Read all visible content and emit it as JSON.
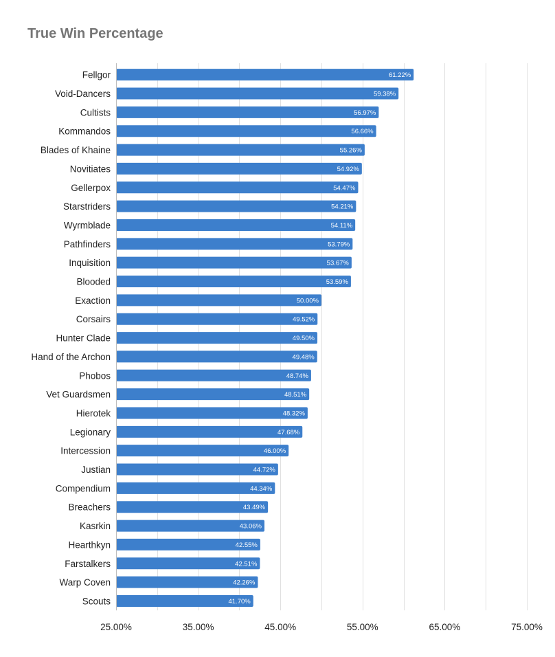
{
  "chart_data": {
    "type": "bar",
    "orientation": "horizontal",
    "title": "True Win Percentage",
    "xlabel": "",
    "ylabel": "",
    "xlim": [
      25,
      75
    ],
    "grid": true,
    "legend": "none",
    "bar_color": "#3d7fcc",
    "categories": [
      "Fellgor",
      "Void-Dancers",
      "Cultists",
      "Kommandos",
      "Blades of Khaine",
      "Novitiates",
      "Gellerpox",
      "Starstriders",
      "Wyrmblade",
      "Pathfinders",
      "Inquisition",
      "Blooded",
      "Exaction",
      "Corsairs",
      "Hunter Clade",
      "Hand of the Archon",
      "Phobos",
      "Vet Guardsmen",
      "Hierotek",
      "Legionary",
      "Intercession",
      "Justian",
      "Compendium",
      "Breachers",
      "Kasrkin",
      "Hearthkyn",
      "Farstalkers",
      "Warp Coven",
      "Scouts"
    ],
    "values": [
      61.22,
      59.38,
      56.97,
      56.66,
      55.26,
      54.92,
      54.47,
      54.21,
      54.11,
      53.79,
      53.67,
      53.59,
      50.0,
      49.52,
      49.5,
      49.48,
      48.74,
      48.51,
      48.32,
      47.68,
      46.0,
      44.72,
      44.34,
      43.49,
      43.06,
      42.55,
      42.51,
      42.26,
      41.7
    ],
    "value_labels": [
      "61.22%",
      "59.38%",
      "56.97%",
      "56.66%",
      "55.26%",
      "54.92%",
      "54.47%",
      "54.21%",
      "54.11%",
      "53.79%",
      "53.67%",
      "53.59%",
      "50.00%",
      "49.52%",
      "49.50%",
      "49.48%",
      "48.74%",
      "48.51%",
      "48.32%",
      "47.68%",
      "46.00%",
      "44.72%",
      "44.34%",
      "43.49%",
      "43.06%",
      "42.55%",
      "42.51%",
      "42.26%",
      "41.70%"
    ],
    "x_ticks": [
      25,
      35,
      45,
      55,
      65,
      75
    ],
    "x_tick_labels": [
      "25.00%",
      "35.00%",
      "45.00%",
      "55.00%",
      "65.00%",
      "75.00%"
    ],
    "x_minor_gridlines": [
      30,
      40,
      50,
      60,
      70
    ]
  }
}
